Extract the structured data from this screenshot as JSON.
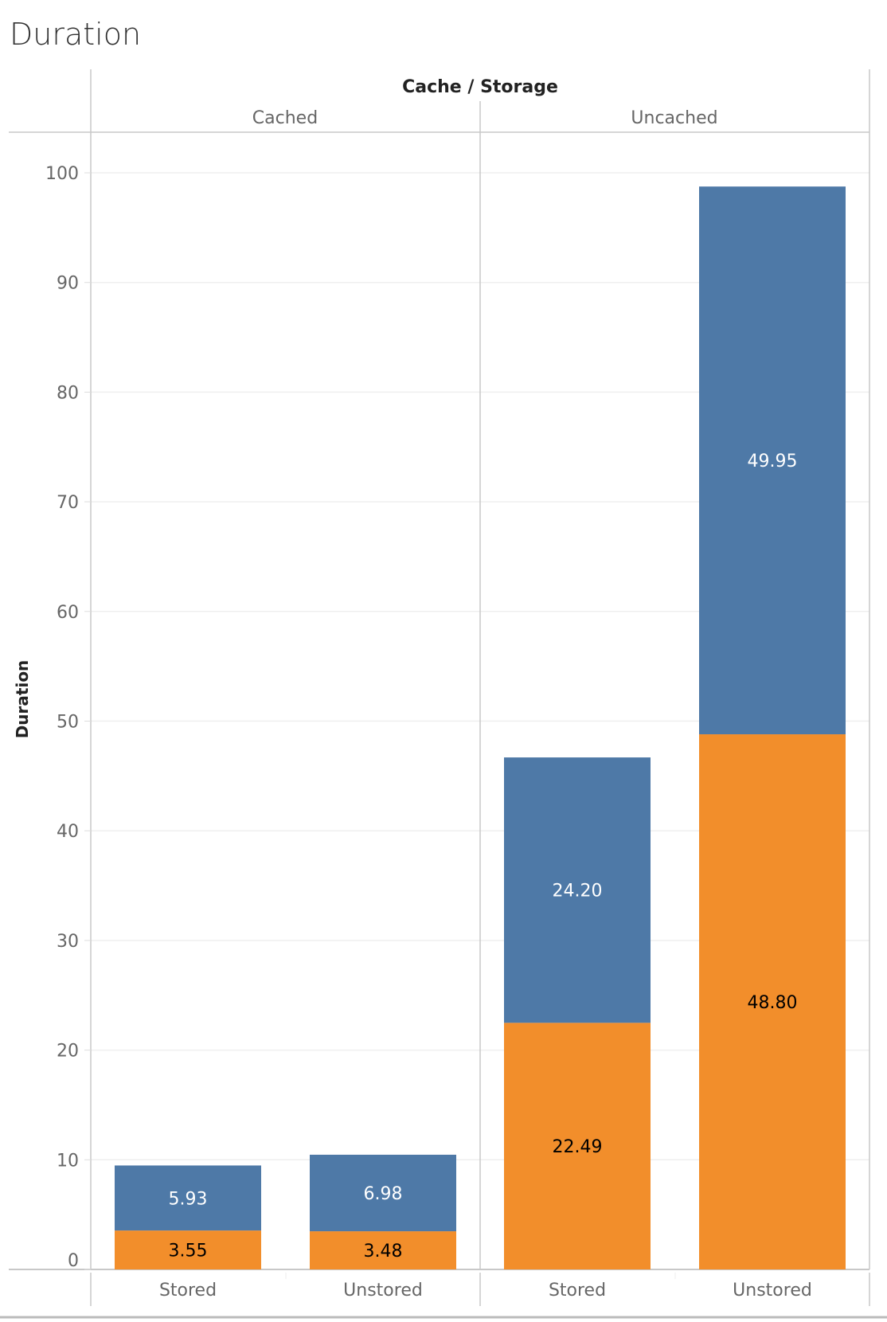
{
  "chart_data": {
    "type": "bar",
    "stacked": true,
    "title": "Duration",
    "column_header": "Cache / Storage",
    "panels": [
      "Cached",
      "Uncached"
    ],
    "categories": [
      "Stored",
      "Unstored"
    ],
    "ylabel": "Duration",
    "ylim": [
      0,
      100
    ],
    "yticks": [
      0,
      10,
      20,
      30,
      40,
      50,
      60,
      70,
      80,
      90,
      100
    ],
    "grid": true,
    "series": [
      {
        "name": "bottom",
        "color": "#f28e2b",
        "label_color": "#000000",
        "values": [
          [
            3.55,
            3.48
          ],
          [
            22.49,
            48.8
          ]
        ],
        "labels": [
          [
            "3.55",
            "3.48"
          ],
          [
            "22.49",
            "48.80"
          ]
        ]
      },
      {
        "name": "top",
        "color": "#4e79a7",
        "label_color": "#ffffff",
        "values": [
          [
            5.93,
            6.98
          ],
          [
            24.2,
            49.95
          ]
        ],
        "labels": [
          [
            "5.93",
            "6.98"
          ],
          [
            "24.20",
            "49.95"
          ]
        ]
      }
    ]
  }
}
